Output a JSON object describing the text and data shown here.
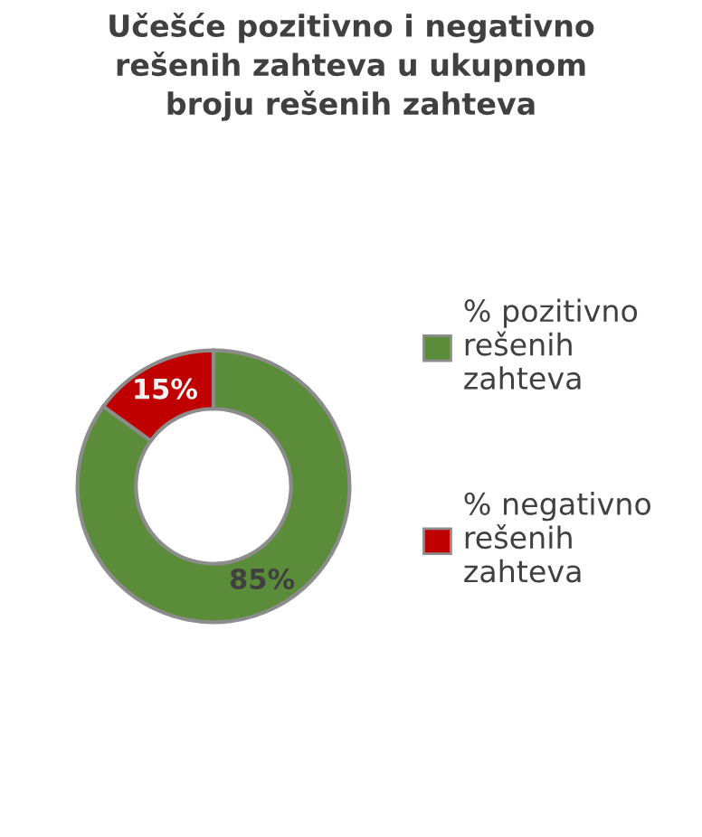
{
  "chart_data": {
    "type": "donut",
    "title": "Učešće pozitivno i negativno\nrešenih zahteva u ukupnom\nbroju rešenih zahteva",
    "categories": [
      "% pozitivno\nrešenih\nzahteva",
      "% negativno\nrešenih\nzahteva"
    ],
    "values": [
      85,
      15
    ],
    "value_labels": [
      "85%",
      "15%"
    ],
    "colors": [
      "#5b8c3a",
      "#c00000"
    ],
    "legend": "right"
  }
}
